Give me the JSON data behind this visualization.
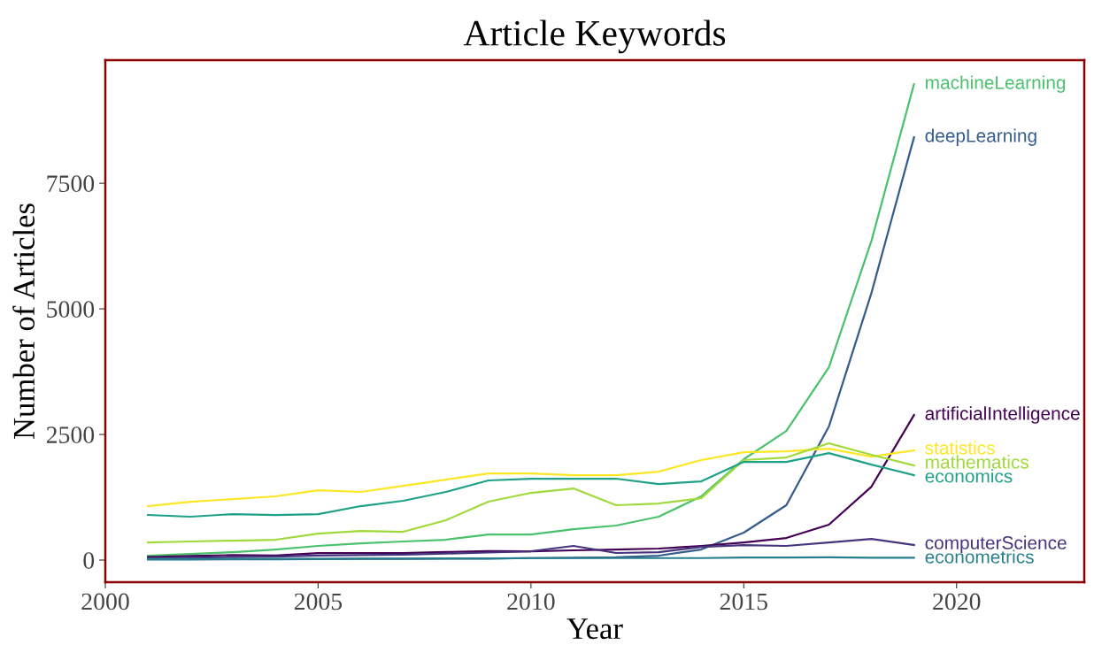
{
  "chart_data": {
    "type": "line",
    "title": "Article Keywords",
    "xlabel": "Year",
    "ylabel": "Number of Articles",
    "x": [
      2001,
      2002,
      2003,
      2004,
      2005,
      2006,
      2007,
      2008,
      2009,
      2010,
      2011,
      2012,
      2013,
      2014,
      2015,
      2016,
      2017,
      2018,
      2019
    ],
    "xlim": [
      2000,
      2023
    ],
    "xticks": [
      2000,
      2005,
      2010,
      2015,
      2020
    ],
    "ylim": [
      -440,
      9950
    ],
    "yticks": [
      0,
      2500,
      5000,
      7500
    ],
    "grid": false,
    "legend": false,
    "marker": "none",
    "line_style": "solid",
    "series": [
      {
        "name": "machineLearning",
        "color": "#4ac16d",
        "values": [
          88,
          123,
          158,
          211,
          282,
          334,
          370,
          405,
          510,
          510,
          616,
          687,
          863,
          1268,
          2007,
          2570,
          3838,
          6356,
          9472
        ]
      },
      {
        "name": "deepLearning",
        "color": "#365c8d",
        "values": [
          10,
          10,
          15,
          15,
          20,
          25,
          25,
          30,
          30,
          40,
          45,
          55,
          88,
          211,
          546,
          1092,
          2658,
          5317,
          8415
        ]
      },
      {
        "name": "artificialIntelligence",
        "color": "#440154",
        "values": [
          60,
          80,
          100,
          90,
          140,
          140,
          140,
          160,
          180,
          176,
          194,
          211,
          229,
          282,
          352,
          440,
          704,
          1461,
          2887
        ]
      },
      {
        "name": "statistics",
        "color": "#fde725",
        "values": [
          1074,
          1160,
          1215,
          1268,
          1390,
          1356,
          1479,
          1602,
          1725,
          1725,
          1690,
          1690,
          1760,
          1990,
          2148,
          2165,
          2218,
          2060,
          2183
        ]
      },
      {
        "name": "mathematics",
        "color": "#9fda3a",
        "values": [
          352,
          370,
          387,
          405,
          528,
          581,
          563,
          792,
          1162,
          1338,
          1426,
          1092,
          1127,
          1232,
          1990,
          2042,
          2324,
          2095,
          1884
        ]
      },
      {
        "name": "economics",
        "color": "#1fa187",
        "values": [
          898,
          863,
          915,
          898,
          915,
          1074,
          1180,
          1356,
          1585,
          1620,
          1620,
          1620,
          1514,
          1567,
          1954,
          1954,
          2130,
          1900,
          1690
        ]
      },
      {
        "name": "computerScience",
        "color": "#46337e",
        "values": [
          40,
          50,
          60,
          70,
          90,
          100,
          110,
          130,
          150,
          176,
          282,
          141,
          158,
          264,
          299,
          282,
          352,
          422,
          299
        ]
      },
      {
        "name": "econometrics",
        "color": "#277f8e",
        "values": [
          20,
          20,
          20,
          25,
          25,
          30,
          30,
          35,
          35,
          40,
          40,
          40,
          40,
          40,
          50,
          50,
          55,
          45,
          45
        ]
      }
    ]
  }
}
